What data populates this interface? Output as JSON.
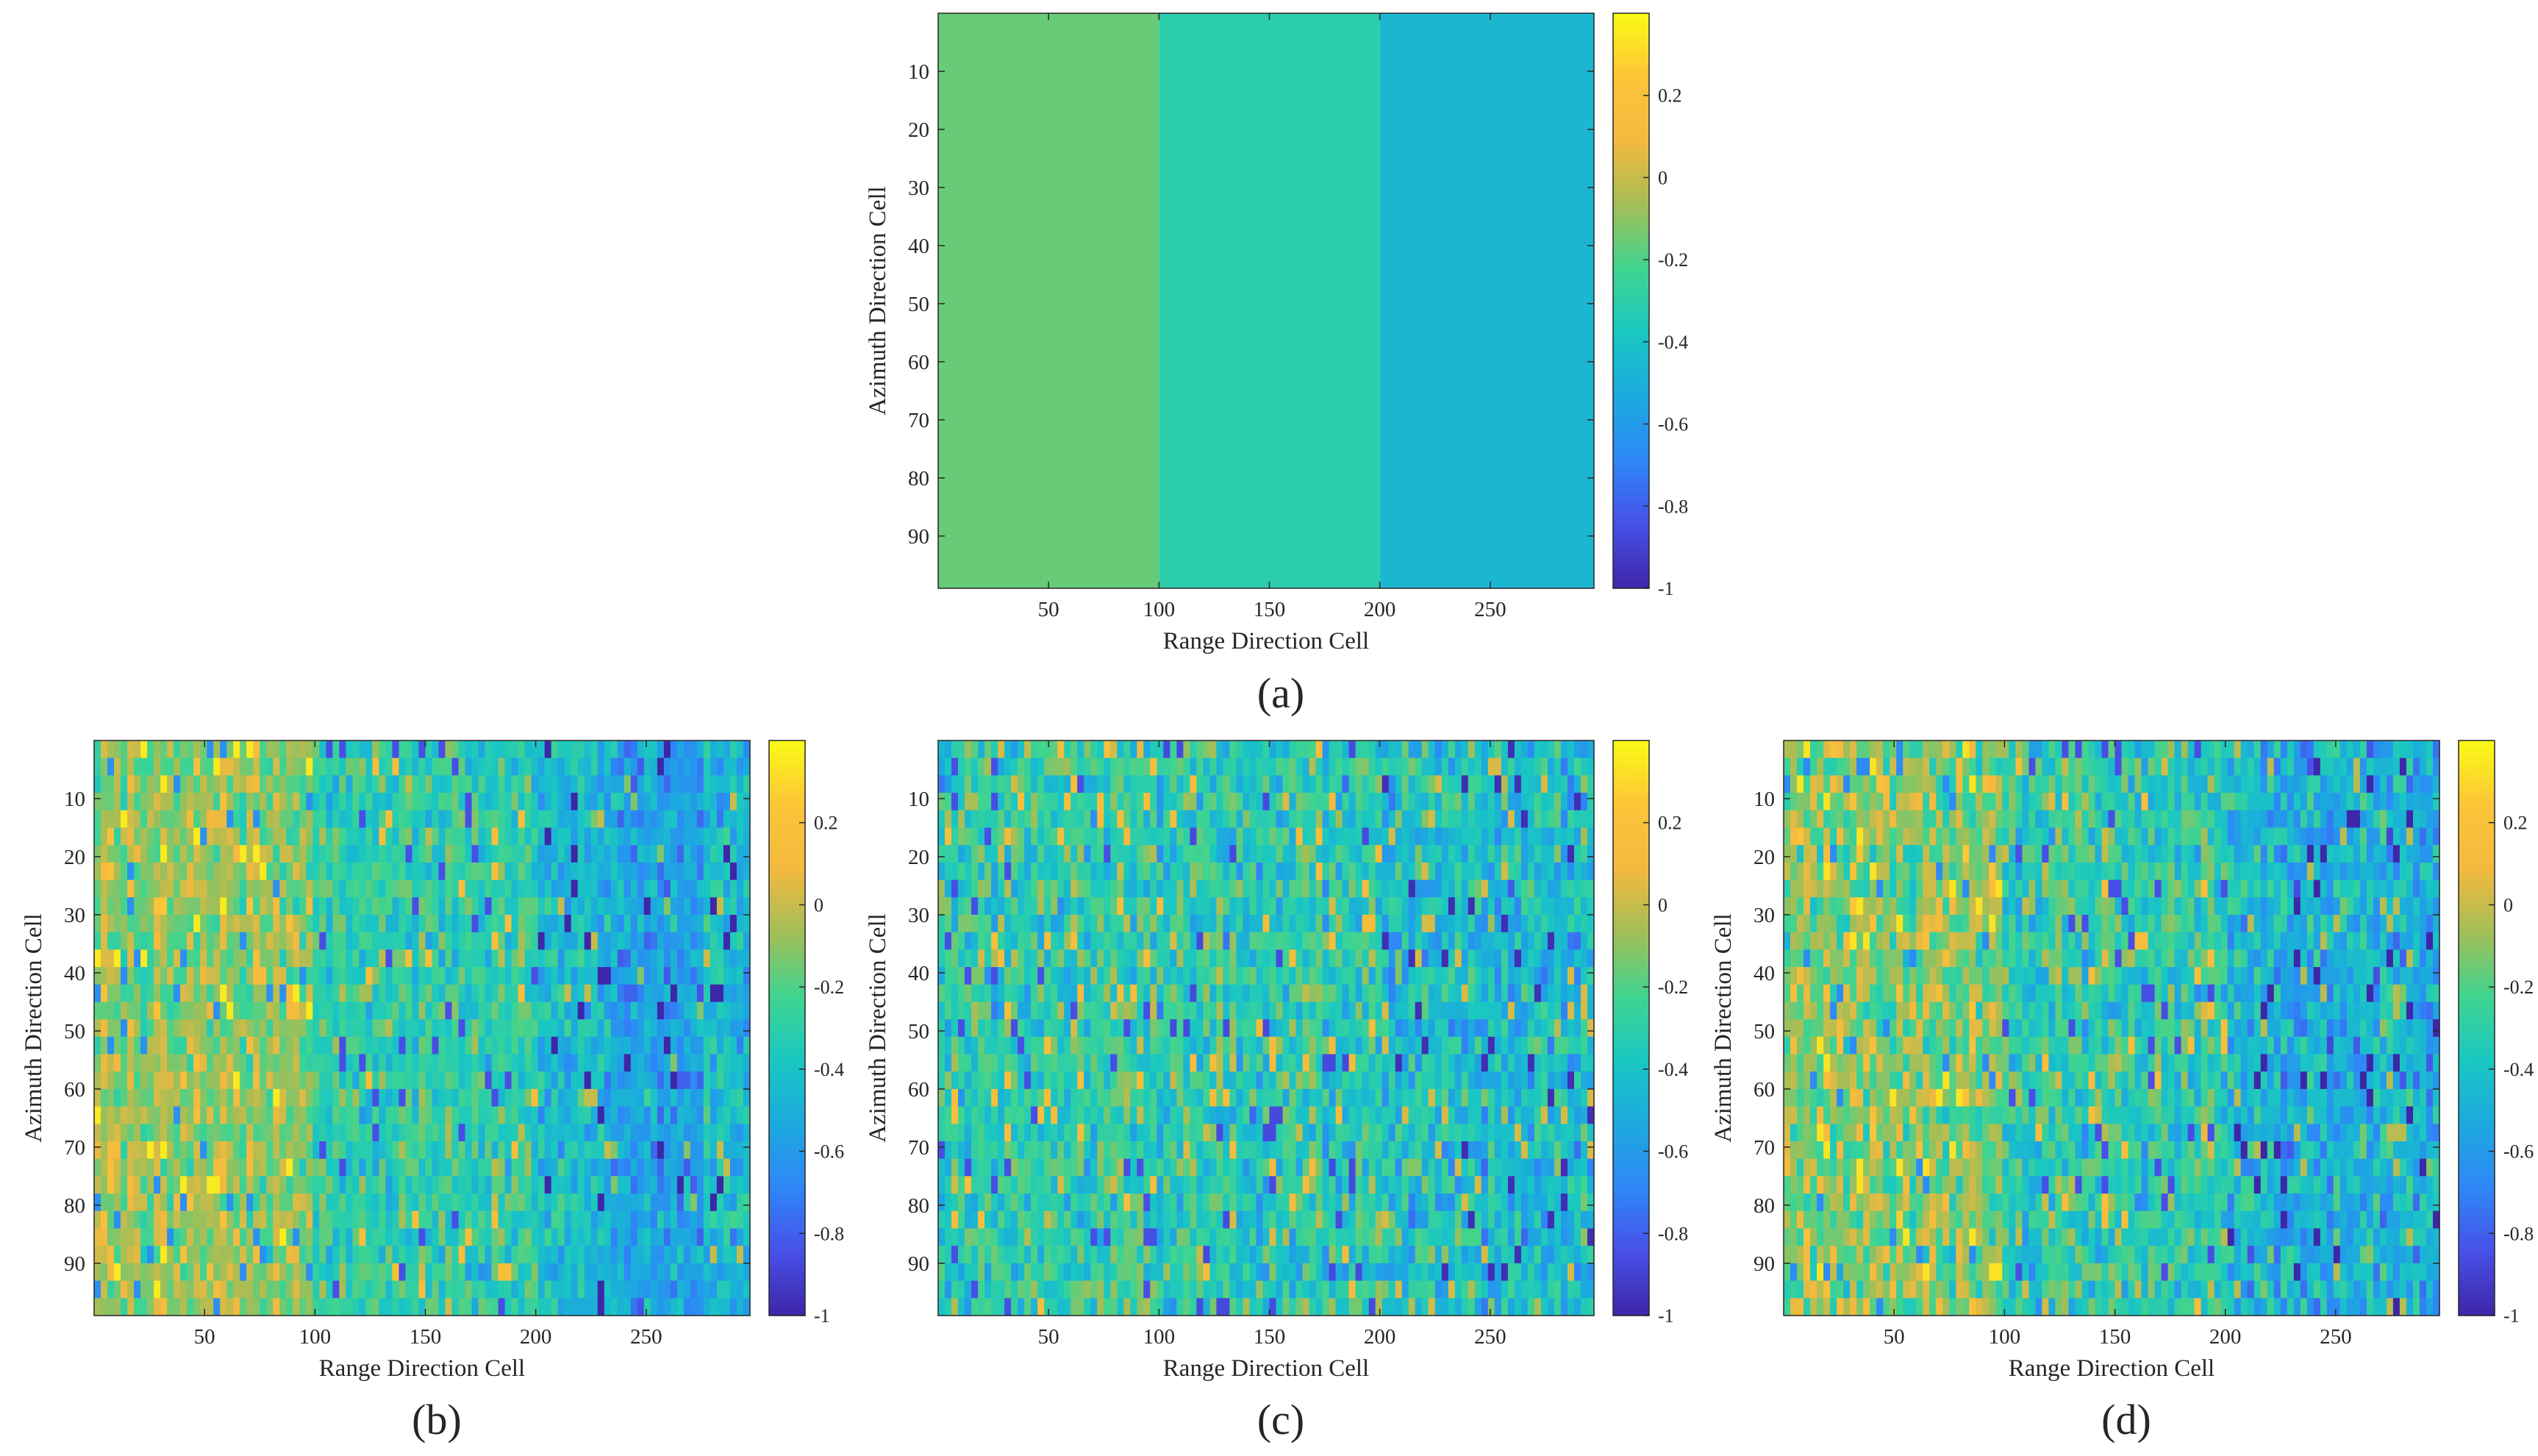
{
  "figure": {
    "colormap": {
      "name": "parula",
      "stops": [
        "#3e26a8",
        "#4750e7",
        "#2e87f7",
        "#1ca9df",
        "#1ac7c2",
        "#40d48f",
        "#a4be56",
        "#f4b93e",
        "#fcc538",
        "#f9fb15"
      ]
    }
  },
  "chart_data": [
    {
      "type": "heatmap",
      "panel_label": "(a)",
      "xlabel": "Range Direction Cell",
      "ylabel": "Azimuth Direction Cell",
      "xlim": [
        0,
        297
      ],
      "ylim": [
        0,
        99
      ],
      "xticks": [
        50,
        100,
        150,
        200,
        250
      ],
      "yticks": [
        10,
        20,
        30,
        40,
        50,
        60,
        70,
        80,
        90
      ],
      "clim": [
        -1,
        0.4
      ],
      "colorbar_ticks": [
        0.2,
        0,
        -0.2,
        -0.4,
        -0.6,
        -0.8,
        -1
      ],
      "pattern": "three constant vertical bands",
      "bands": [
        {
          "x_range": [
            0,
            100
          ],
          "value": -0.16
        },
        {
          "x_range": [
            100,
            200
          ],
          "value": -0.31
        },
        {
          "x_range": [
            200,
            297
          ],
          "value": -0.46
        }
      ],
      "noise": 0
    },
    {
      "type": "heatmap",
      "panel_label": "(b)",
      "xlabel": "Range Direction Cell",
      "ylabel": "Azimuth Direction Cell",
      "xlim": [
        0,
        297
      ],
      "ylim": [
        0,
        99
      ],
      "xticks": [
        50,
        100,
        150,
        200,
        250
      ],
      "yticks": [
        10,
        20,
        30,
        40,
        50,
        60,
        70,
        80,
        90
      ],
      "clim": [
        -1,
        0.4
      ],
      "colorbar_ticks": [
        0.2,
        0,
        -0.2,
        -0.4,
        -0.6,
        -0.8,
        -1
      ],
      "pattern": "noisy estimate of three bands with sharp edge at 100 and dark streak near 250",
      "bands": [
        {
          "x_range": [
            0,
            100
          ],
          "value": -0.1
        },
        {
          "x_range": [
            100,
            200
          ],
          "value": -0.3
        },
        {
          "x_range": [
            200,
            297
          ],
          "value": -0.45
        }
      ],
      "noise": 0.16,
      "seed": 7
    },
    {
      "type": "heatmap",
      "panel_label": "(c)",
      "xlabel": "Range Direction Cell",
      "ylabel": "Azimuth Direction Cell",
      "xlim": [
        0,
        297
      ],
      "ylim": [
        0,
        99
      ],
      "xticks": [
        50,
        100,
        150,
        200,
        250
      ],
      "yticks": [
        10,
        20,
        30,
        40,
        50,
        60,
        70,
        80,
        90
      ],
      "clim": [
        -1,
        0.4
      ],
      "colorbar_ticks": [
        0.2,
        0,
        -0.2,
        -0.4,
        -0.6,
        -0.8,
        -1
      ],
      "pattern": "noisy estimate with weak band contrast",
      "bands": [
        {
          "x_range": [
            0,
            100
          ],
          "value": -0.3
        },
        {
          "x_range": [
            100,
            200
          ],
          "value": -0.32
        },
        {
          "x_range": [
            200,
            297
          ],
          "value": -0.42
        }
      ],
      "noise": 0.2,
      "seed": 13
    },
    {
      "type": "heatmap",
      "panel_label": "(d)",
      "xlabel": "Range Direction Cell",
      "ylabel": "Azimuth Direction Cell",
      "xlim": [
        0,
        297
      ],
      "ylim": [
        0,
        99
      ],
      "xticks": [
        50,
        100,
        150,
        200,
        250
      ],
      "yticks": [
        10,
        20,
        30,
        40,
        50,
        60,
        70,
        80,
        90
      ],
      "clim": [
        -1,
        0.4
      ],
      "colorbar_ticks": [
        0.2,
        0,
        -0.2,
        -0.4,
        -0.6,
        -0.8,
        -1
      ],
      "pattern": "noisy estimate, brighter left band, darker right band",
      "bands": [
        {
          "x_range": [
            0,
            100
          ],
          "value": -0.12
        },
        {
          "x_range": [
            100,
            200
          ],
          "value": -0.3
        },
        {
          "x_range": [
            200,
            297
          ],
          "value": -0.48
        }
      ],
      "noise": 0.2,
      "seed": 29
    }
  ]
}
